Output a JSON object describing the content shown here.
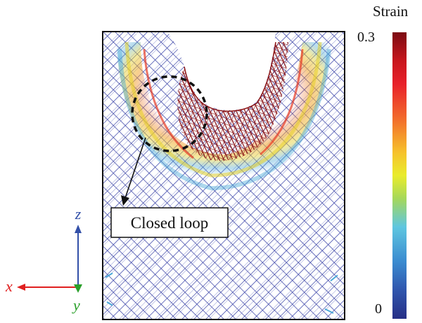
{
  "colorbar": {
    "title": "Strain",
    "max_label": "0.3",
    "min_label": "0",
    "colors": [
      "#7b0a12",
      "#e8202a",
      "#f6c22c",
      "#e9ec2b",
      "#5ec6e0",
      "#2f55ad",
      "#262f86"
    ]
  },
  "annotation": {
    "label": "Closed loop"
  },
  "axes": {
    "z_label": "z",
    "x_label": "x",
    "y_label": "y",
    "z_color": "#3350a8",
    "x_color": "#e02020",
    "y_color": "#2aa02a"
  },
  "mesh_colors": {
    "base": "#3b44a6",
    "mid": "#4aa8d8",
    "warm": "#e7d12a",
    "hot": "#e63b25",
    "damaged": "#8a1214"
  }
}
